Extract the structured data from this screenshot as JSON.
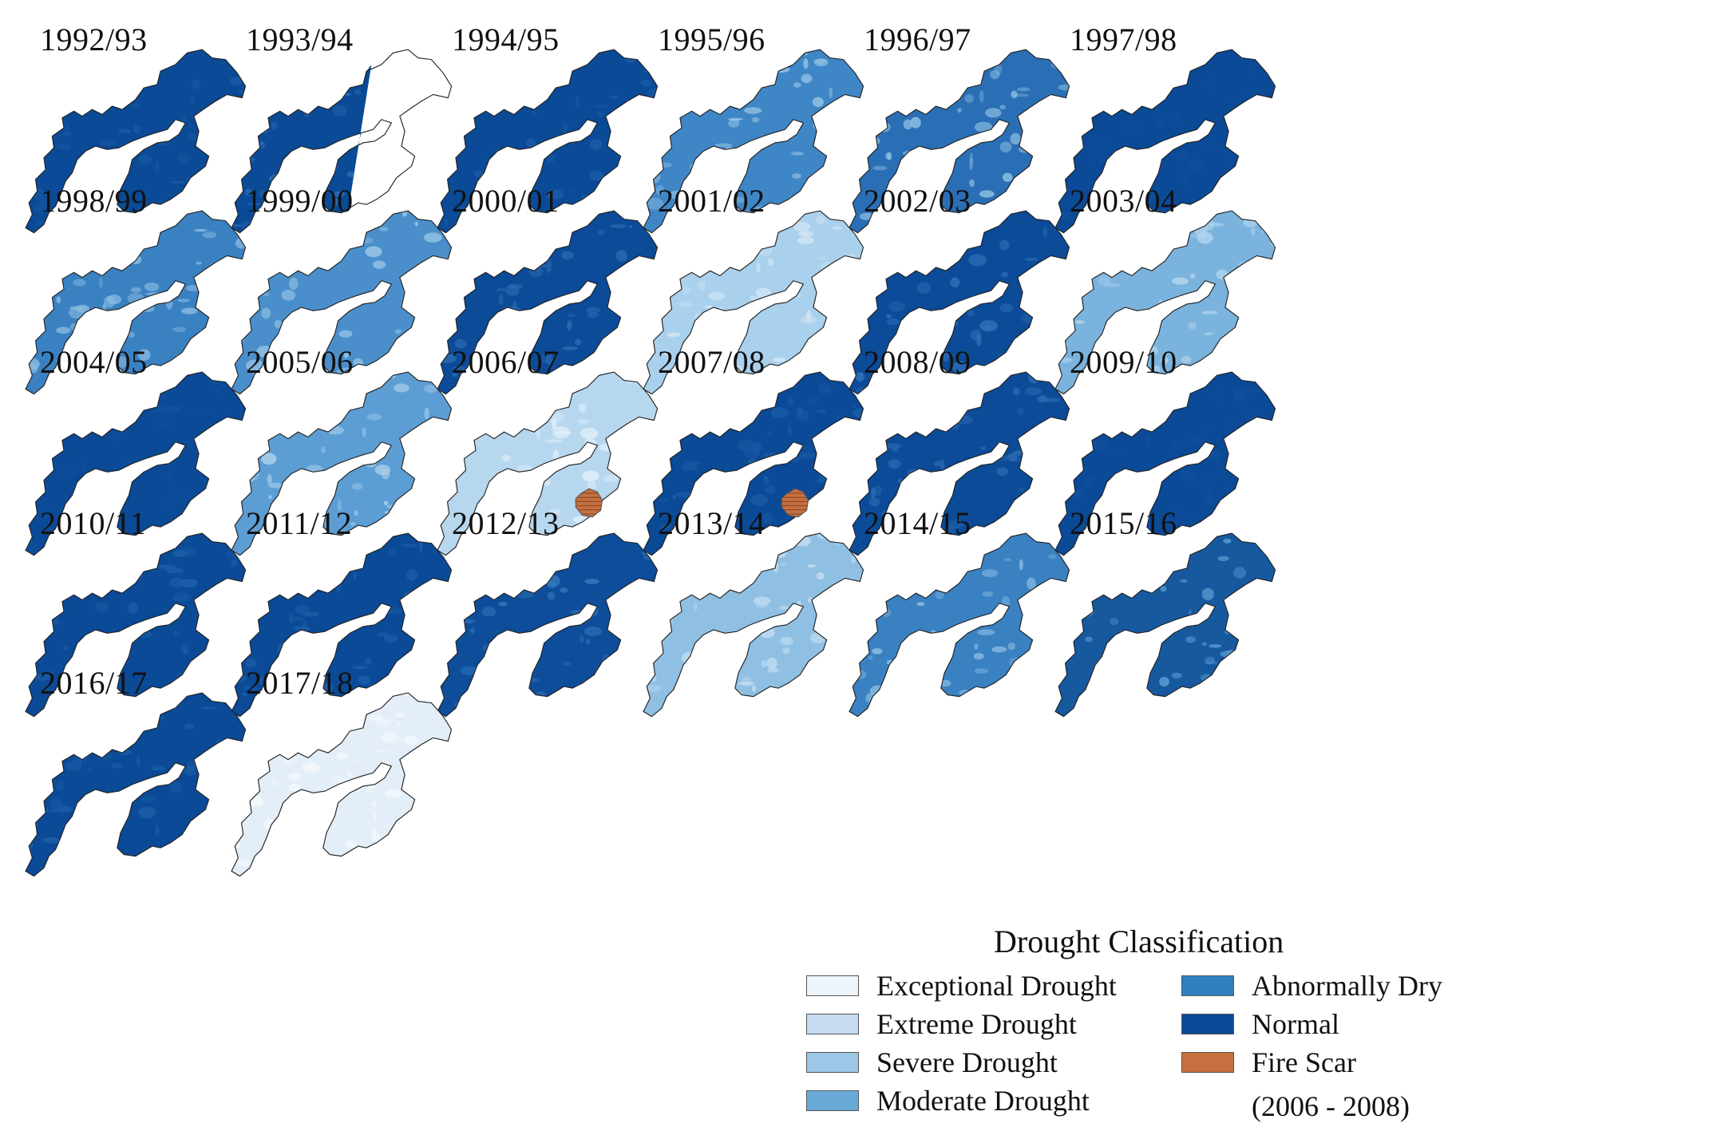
{
  "panels": [
    {
      "label": "1992/93",
      "fill": "#0a4a97",
      "texture": "#1b5ca6",
      "mode": "normal"
    },
    {
      "label": "1993/94",
      "fill": "#0a4a97",
      "texture": "#2d6db4",
      "mode": "partial"
    },
    {
      "label": "1994/95",
      "fill": "#0a4a97",
      "texture": "#1b5ca6",
      "mode": "normal"
    },
    {
      "label": "1995/96",
      "fill": "#3f86c6",
      "texture": "#9ac6e6",
      "mode": "normal"
    },
    {
      "label": "1996/97",
      "fill": "#2a6fb5",
      "texture": "#8dbfe3",
      "mode": "normal"
    },
    {
      "label": "1997/98",
      "fill": "#0a4a97",
      "texture": "#0d4f9c",
      "mode": "normal"
    },
    {
      "label": "1998/99",
      "fill": "#3a81c2",
      "texture": "#8cbde2",
      "mode": "normal"
    },
    {
      "label": "1999/00",
      "fill": "#4a8fcb",
      "texture": "#9dc9e8",
      "mode": "normal"
    },
    {
      "label": "2000/01",
      "fill": "#0b4b98",
      "texture": "#2c6db3",
      "mode": "normal"
    },
    {
      "label": "2001/02",
      "fill": "#a9d0ec",
      "texture": "#d2e6f5",
      "mode": "normal"
    },
    {
      "label": "2002/03",
      "fill": "#0b4b98",
      "texture": "#2f72b8",
      "mode": "normal"
    },
    {
      "label": "2003/04",
      "fill": "#7ab3dd",
      "texture": "#b5d6ee",
      "mode": "normal"
    },
    {
      "label": "2004/05",
      "fill": "#0a4a97",
      "texture": "#0f519d",
      "mode": "normal"
    },
    {
      "label": "2005/06",
      "fill": "#5c9ed4",
      "texture": "#a9cfeb",
      "mode": "normal"
    },
    {
      "label": "2006/07",
      "fill": "#b7d7ef",
      "texture": "#e2eff9",
      "mode": "fire"
    },
    {
      "label": "2007/08",
      "fill": "#0a4a97",
      "texture": "#1b5ca6",
      "mode": "fire"
    },
    {
      "label": "2008/09",
      "fill": "#0b4b98",
      "texture": "#2a6bb2",
      "mode": "normal"
    },
    {
      "label": "2009/10",
      "fill": "#0a4a97",
      "texture": "#114f9c",
      "mode": "normal"
    },
    {
      "label": "2010/11",
      "fill": "#0a4a97",
      "texture": "#1d5ea8",
      "mode": "normal"
    },
    {
      "label": "2011/12",
      "fill": "#0a4a97",
      "texture": "#1d5ea8",
      "mode": "normal"
    },
    {
      "label": "2012/13",
      "fill": "#0d4d9a",
      "texture": "#3377bb",
      "mode": "normal"
    },
    {
      "label": "2013/14",
      "fill": "#8fc0e4",
      "texture": "#c3def2",
      "mode": "normal"
    },
    {
      "label": "2014/15",
      "fill": "#3a81c2",
      "texture": "#8dbfe3",
      "mode": "normal"
    },
    {
      "label": "2015/16",
      "fill": "#16599f",
      "texture": "#5a9bd2",
      "mode": "normal"
    },
    {
      "label": "2016/17",
      "fill": "#0a4a97",
      "texture": "#1d5ea8",
      "mode": "normal"
    },
    {
      "label": "2017/18",
      "fill": "#e3eef8",
      "texture": "#f4f9fd",
      "mode": "normal"
    }
  ],
  "legend": {
    "title": "Drought Classification",
    "items": [
      {
        "label": "Exceptional Drought",
        "color": "#eef4fb"
      },
      {
        "label": "Extreme Drought",
        "color": "#c6ddf1"
      },
      {
        "label": "Severe Drought",
        "color": "#9cc7e6"
      },
      {
        "label": "Moderate Drought",
        "color": "#6aaad8"
      },
      {
        "label": "Abnormally Dry",
        "color": "#2f7fc1"
      },
      {
        "label": "Normal",
        "color": "#0a4a97"
      },
      {
        "label": "Fire Scar",
        "color": "#c7703f"
      }
    ],
    "fire_scar_period": "(2006 - 2008)"
  }
}
